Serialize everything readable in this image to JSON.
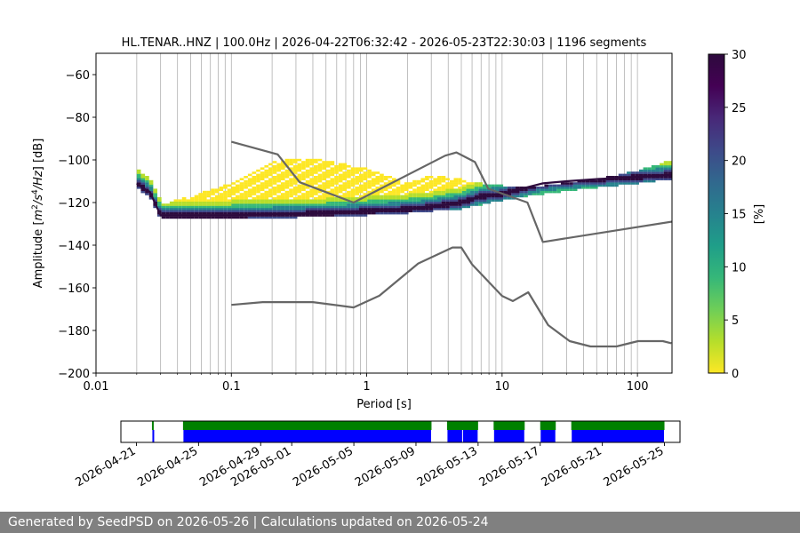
{
  "chart_data": [
    {
      "type": "heatmap",
      "title": "HL.TENAR..HNZ | 100.0Hz | 2026-04-22T06:32:42 - 2026-05-23T22:30:03 | 1196 segments",
      "xlabel": "Period [s]",
      "ylabel_parts": [
        "Amplitude [",
        "m",
        "2",
        "/s",
        "4",
        "/Hz",
        "] [dB]"
      ],
      "x_scale": "log",
      "xlim": [
        0.01,
        180
      ],
      "ylim": [
        -200,
        -50
      ],
      "x_ticks": [
        0.01,
        0.1,
        1,
        10,
        100
      ],
      "x_tick_labels": [
        "0.01",
        "0.1",
        "1",
        "10",
        "100"
      ],
      "y_ticks": [
        -200,
        -180,
        -160,
        -140,
        -120,
        -100,
        -80,
        -60
      ],
      "y_tick_labels": [
        "−200",
        "−180",
        "−160",
        "−140",
        "−120",
        "−100",
        "−80",
        "−60"
      ],
      "grid": "x-minor-and-major",
      "colorbar": {
        "label": "[%]",
        "range": [
          0,
          30
        ],
        "ticks": [
          0,
          5,
          10,
          15,
          20,
          25,
          30
        ],
        "tick_labels": [
          "0",
          "5",
          "10",
          "15",
          "20",
          "25",
          "30"
        ],
        "colormap": "viridis-reversed",
        "stops": [
          "#fde725",
          "#b5de2b",
          "#6ece58",
          "#35b779",
          "#1f9e89",
          "#26828e",
          "#31688e",
          "#3e4989",
          "#482878",
          "#440154",
          "#2d0a3d"
        ]
      },
      "mode_curve": {
        "periods": [
          0.02,
          0.022,
          0.025,
          0.03,
          0.05,
          0.1,
          0.2,
          0.5,
          1,
          2,
          3,
          5,
          7,
          10,
          15,
          20,
          30,
          50,
          100,
          180
        ],
        "db": [
          -111,
          -113,
          -115,
          -126,
          -126,
          -126,
          -125.5,
          -125,
          -124,
          -123,
          -122,
          -120,
          -117,
          -116,
          -113,
          -111,
          -110,
          -109,
          -108,
          -107
        ]
      },
      "psd_spread": {
        "periods": [
          0.03,
          0.05,
          0.1,
          0.2,
          0.3,
          0.5,
          1,
          2,
          3,
          5,
          7,
          10,
          20,
          50,
          100,
          180
        ],
        "upper_db": [
          -122,
          -118,
          -112,
          -102,
          -100,
          -101,
          -105,
          -112,
          -108,
          -110,
          -112,
          -113,
          -113,
          -110,
          -106,
          -101
        ],
        "lower_db": [
          -127,
          -127,
          -127,
          -127,
          -126,
          -126,
          -125,
          -124,
          -123,
          -122,
          -120,
          -118,
          -115,
          -112,
          -110,
          -108
        ]
      },
      "series": [
        {
          "role": "noise-model-high",
          "color": "#666666",
          "periods": [
            0.1,
            0.22,
            0.32,
            0.8,
            3.8,
            4.6,
            6.3,
            7.9,
            15.4,
            20,
            354.8
          ],
          "db": [
            -91.5,
            -97.4,
            -110.5,
            -120,
            -98,
            -96.5,
            -101,
            -113.5,
            -120,
            -138.5,
            -126
          ]
        },
        {
          "role": "noise-model-low",
          "color": "#666666",
          "periods": [
            0.1,
            0.17,
            0.4,
            0.8,
            1.24,
            2.4,
            4.3,
            5,
            6,
            10,
            12,
            15.6,
            21.9,
            31.6,
            45,
            70,
            101,
            154,
            178
          ],
          "db": [
            -168,
            -166.7,
            -166.7,
            -169.2,
            -163.7,
            -148.6,
            -141.1,
            -141.1,
            -149,
            -163.8,
            -166.2,
            -162.1,
            -177.5,
            -185,
            -187.5,
            -187.5,
            -185,
            -185,
            -186
          ]
        }
      ]
    },
    {
      "type": "timeline",
      "date_ticks": [
        "2026-04-21",
        "2026-04-25",
        "2026-04-29",
        "2026-05-01",
        "2026-05-05",
        "2026-05-09",
        "2026-05-13",
        "2026-05-17",
        "2026-05-21",
        "2026-05-25"
      ],
      "range_start": "2026-04-20",
      "range_end": "2026-05-26",
      "colors": {
        "green": "#008000",
        "blue": "#0000ff"
      },
      "green_intervals": [
        [
          "2026-04-22",
          "2026-04-22"
        ],
        [
          "2026-04-24",
          "2026-05-10"
        ],
        [
          "2026-05-11",
          "2026-05-13"
        ],
        [
          "2026-05-14",
          "2026-05-16"
        ],
        [
          "2026-05-17",
          "2026-05-18"
        ],
        [
          "2026-05-19",
          "2026-05-25"
        ]
      ],
      "blue_intervals": [
        [
          "2026-04-22",
          "2026-04-22"
        ],
        [
          "2026-04-24",
          "2026-05-10"
        ],
        [
          "2026-05-11",
          "2026-05-12"
        ],
        [
          "2026-05-12",
          "2026-05-13"
        ],
        [
          "2026-05-14",
          "2026-05-16"
        ],
        [
          "2026-05-17",
          "2026-05-18"
        ],
        [
          "2026-05-19",
          "2026-05-25"
        ]
      ]
    }
  ],
  "footer": {
    "text": "Generated by SeedPSD on 2026-05-26 | Calculations updated on 2026-05-24"
  }
}
